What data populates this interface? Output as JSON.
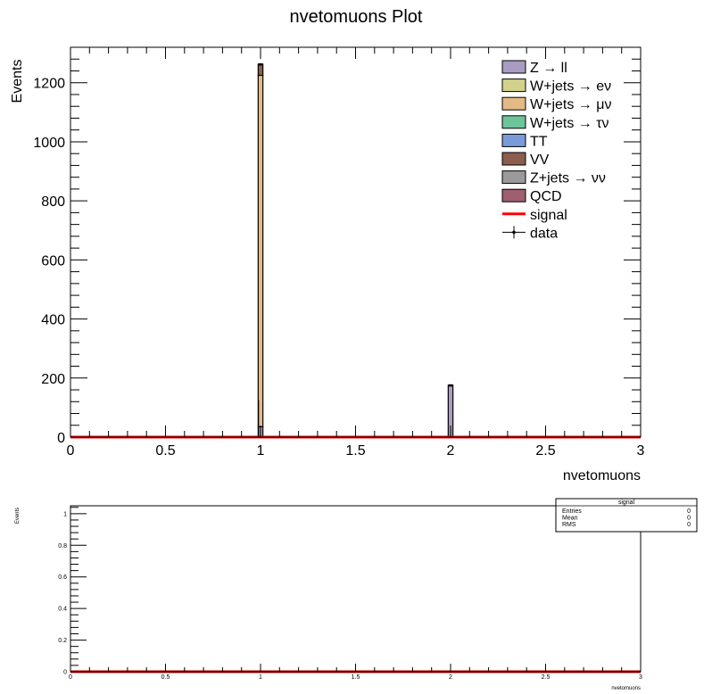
{
  "chart_data": [
    {
      "type": "bar",
      "stacked": true,
      "title": "nvetomuons Plot",
      "xlabel": "nvetomuons",
      "ylabel": "Events",
      "xlim": [
        0,
        3
      ],
      "ylim": [
        0,
        1320
      ],
      "x_ticks": [
        0,
        0.5,
        1,
        1.5,
        2,
        2.5,
        3
      ],
      "x_tick_labels": [
        "0",
        "0.5",
        "1",
        "1.5",
        "2",
        "2.5",
        "3"
      ],
      "y_ticks": [
        0,
        200,
        400,
        600,
        800,
        1000,
        1200
      ],
      "y_tick_labels": [
        "0",
        "200",
        "400",
        "600",
        "800",
        "1000",
        "1200"
      ],
      "bin_width": 0.025,
      "bins": [
        1.0,
        2.0
      ],
      "legend_position": "top-right",
      "series": [
        {
          "name": "Z → ll",
          "color": "#a99cc0",
          "values": [
            35,
            175
          ]
        },
        {
          "name": "W+jets → eν",
          "color": "#d2d28c",
          "values": [
            0,
            0
          ]
        },
        {
          "name": "W+jets → μν",
          "color": "#e3b985",
          "values": [
            1190,
            0
          ]
        },
        {
          "name": "W+jets → τν",
          "color": "#6cc49a",
          "values": [
            0,
            0
          ]
        },
        {
          "name": "TT",
          "color": "#7b9ad9",
          "values": [
            0,
            0
          ]
        },
        {
          "name": "VV",
          "color": "#8c5e4e",
          "values": [
            37,
            0
          ]
        },
        {
          "name": "Z+jets → νν",
          "color": "#9a9a9a",
          "values": [
            0,
            0
          ]
        },
        {
          "name": "QCD",
          "color": "#9e5f6e",
          "values": [
            0,
            0
          ]
        }
      ],
      "signal": {
        "name": "signal",
        "color": "#ff0000",
        "value": 0
      },
      "data": {
        "name": "data",
        "points": [
          {
            "x": 0.99,
            "y": 0,
            "err": 125
          }
        ]
      }
    },
    {
      "type": "line",
      "xlabel": "nvetomuons",
      "ylabel": "Events",
      "xlim": [
        0,
        3
      ],
      "ylim": [
        0,
        1.05
      ],
      "x_ticks": [
        0,
        0.5,
        1,
        1.5,
        2,
        2.5,
        3
      ],
      "x_tick_labels": [
        "0",
        "0.5",
        "1",
        "1.5",
        "2",
        "2.5",
        "3"
      ],
      "y_ticks": [
        0,
        0.2,
        0.4,
        0.6,
        0.8,
        1
      ],
      "y_tick_labels": [
        "0",
        "0.2",
        "0.4",
        "0.6",
        "0.8",
        "1"
      ],
      "series": [
        {
          "name": "signal",
          "color": "#cc0000",
          "value": 0
        }
      ],
      "stats_box": {
        "title": "signal",
        "rows": [
          {
            "label": "Entries",
            "value": "0"
          },
          {
            "label": "Mean",
            "value": "0"
          },
          {
            "label": "RMS",
            "value": "0"
          }
        ]
      }
    }
  ]
}
